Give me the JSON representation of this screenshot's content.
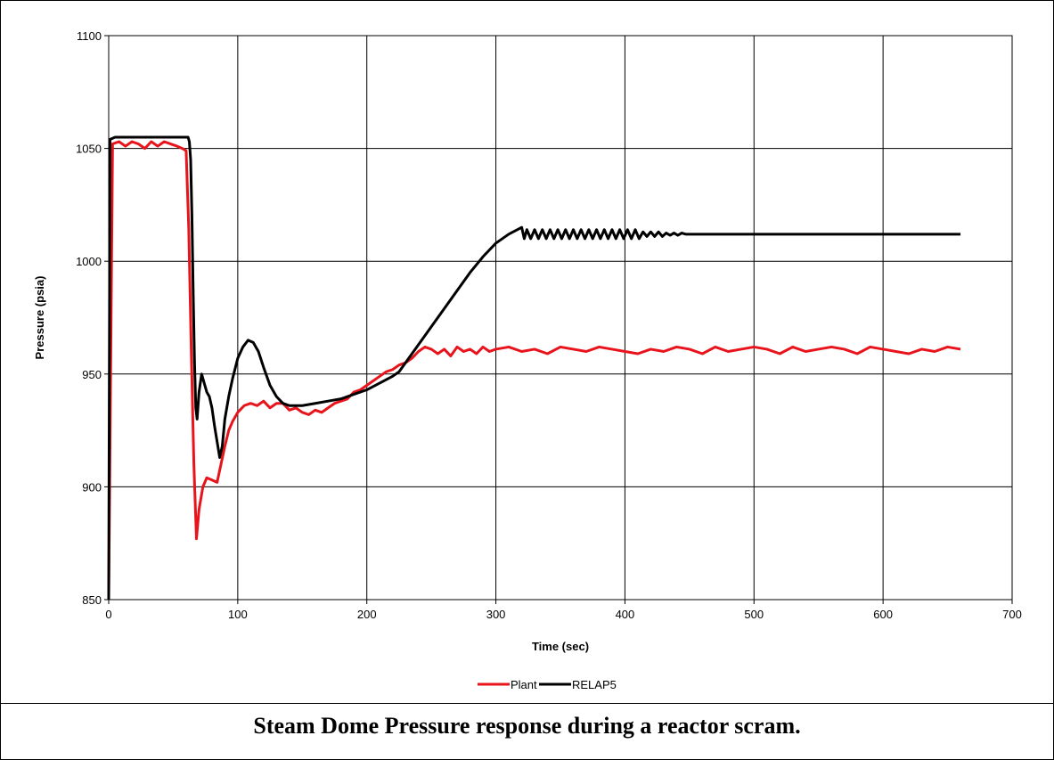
{
  "caption": "Steam Dome Pressure response during a reactor scram.",
  "chart_data": {
    "type": "line",
    "title": "",
    "xlabel": "Time (sec)",
    "ylabel": "Pressure (psia)",
    "xlim": [
      0,
      700
    ],
    "ylim": [
      850,
      1100
    ],
    "xticks": [
      0,
      100,
      200,
      300,
      400,
      500,
      600,
      700
    ],
    "yticks": [
      850,
      900,
      950,
      1000,
      1050,
      1100
    ],
    "grid": true,
    "legend_position": "bottom-center",
    "series": [
      {
        "name": "Plant",
        "color": "#e8141c",
        "x": [
          0,
          3,
          8,
          13,
          18,
          23,
          28,
          33,
          38,
          43,
          48,
          53,
          57,
          60,
          62,
          64,
          66,
          68,
          70,
          73,
          76,
          80,
          84,
          87,
          90,
          93,
          96,
          100,
          105,
          110,
          115,
          120,
          125,
          130,
          135,
          140,
          145,
          150,
          155,
          160,
          165,
          170,
          175,
          180,
          185,
          190,
          195,
          200,
          205,
          210,
          215,
          220,
          225,
          230,
          235,
          240,
          245,
          250,
          255,
          260,
          265,
          270,
          275,
          280,
          285,
          290,
          295,
          300,
          310,
          320,
          330,
          340,
          350,
          360,
          370,
          380,
          390,
          400,
          410,
          420,
          430,
          440,
          450,
          460,
          470,
          480,
          490,
          500,
          510,
          520,
          530,
          540,
          550,
          560,
          570,
          580,
          590,
          600,
          610,
          620,
          630,
          640,
          650,
          660
        ],
        "y": [
          851,
          1052,
          1053,
          1051,
          1053,
          1052,
          1050,
          1053,
          1051,
          1053,
          1052,
          1051,
          1050,
          1049,
          1015,
          960,
          910,
          877,
          890,
          900,
          904,
          903,
          902,
          910,
          918,
          925,
          929,
          933,
          936,
          937,
          936,
          938,
          935,
          937,
          937,
          934,
          935,
          933,
          932,
          934,
          933,
          935,
          937,
          938,
          939,
          942,
          943,
          945,
          947,
          949,
          951,
          952,
          954,
          955,
          957,
          960,
          962,
          961,
          959,
          961,
          958,
          962,
          960,
          961,
          959,
          962,
          960,
          961,
          962,
          960,
          961,
          959,
          962,
          961,
          960,
          962,
          961,
          960,
          959,
          961,
          960,
          962,
          961,
          959,
          962,
          960,
          961,
          962,
          961,
          959,
          962,
          960,
          961,
          962,
          961,
          959,
          962,
          961,
          960,
          959,
          961,
          960,
          962,
          961
        ]
      },
      {
        "name": "RELAP5",
        "color": "#000000",
        "x": [
          0,
          1,
          5,
          20,
          40,
          60,
          61.5,
          62.5,
          63.5,
          64.5,
          65.5,
          66.5,
          67.5,
          68.5,
          70,
          72,
          74,
          76,
          78,
          80,
          82,
          84,
          86,
          88,
          90,
          93,
          96,
          100,
          104,
          108,
          112,
          116,
          120,
          125,
          130,
          135,
          140,
          145,
          150,
          160,
          170,
          180,
          190,
          200,
          210,
          220,
          225,
          230,
          240,
          250,
          260,
          270,
          280,
          290,
          300,
          310,
          320,
          322,
          324,
          327,
          330,
          333,
          336,
          339,
          342,
          345,
          348,
          351,
          354,
          357,
          360,
          363,
          366,
          369,
          372,
          375,
          378,
          381,
          384,
          387,
          390,
          393,
          396,
          399,
          402,
          405,
          408,
          411,
          414,
          417,
          420,
          423,
          426,
          429,
          432,
          435,
          438,
          441,
          444,
          447,
          450,
          455,
          460,
          470,
          480,
          500,
          550,
          600,
          650,
          660
        ],
        "y": [
          850,
          1054,
          1055,
          1055,
          1055,
          1055,
          1055,
          1053,
          1045,
          1020,
          985,
          955,
          935,
          930,
          942,
          950,
          946,
          942,
          940,
          935,
          927,
          920,
          913,
          918,
          930,
          940,
          948,
          957,
          962,
          965,
          964,
          960,
          953,
          945,
          940,
          937,
          936,
          936,
          936,
          937,
          938,
          939,
          941,
          943,
          946,
          949,
          951,
          955,
          963,
          971,
          979,
          987,
          995,
          1002,
          1008,
          1012,
          1015,
          1010,
          1014,
          1010,
          1014,
          1010,
          1014,
          1010,
          1014,
          1010,
          1014,
          1010,
          1014,
          1010,
          1014,
          1010,
          1014,
          1010,
          1014,
          1010,
          1014,
          1010,
          1014,
          1010,
          1014,
          1010,
          1014,
          1010,
          1014,
          1010,
          1014,
          1010,
          1013,
          1011,
          1013,
          1011,
          1013,
          1011,
          1012.5,
          1011.5,
          1012.5,
          1011.5,
          1012.5,
          1012,
          1012,
          1012,
          1012,
          1012,
          1012,
          1012,
          1012,
          1012,
          1012,
          1012
        ]
      }
    ]
  }
}
